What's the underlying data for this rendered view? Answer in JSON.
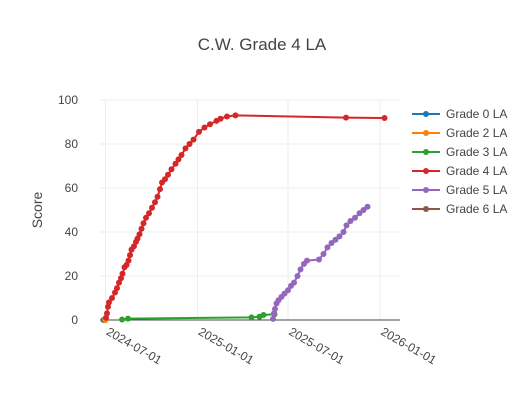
{
  "chart_data": {
    "type": "line",
    "title": "C.W. Grade 4 LA",
    "xlabel": "",
    "ylabel": "Score",
    "xlim": [
      "2024-06-20",
      "2026-02-10"
    ],
    "ylim": [
      0,
      100
    ],
    "x_ticks": [
      "2024-07-01",
      "2025-01-01",
      "2025-07-01",
      "2026-01-01"
    ],
    "y_ticks": [
      0,
      20,
      40,
      60,
      80,
      100
    ],
    "grid": true,
    "legend_position": "right",
    "series": [
      {
        "name": "Grade 0 LA",
        "color": "#1f77b4",
        "points": [
          [
            "2024-06-27",
            0
          ],
          [
            "2024-06-29",
            0
          ]
        ]
      },
      {
        "name": "Grade 2 LA",
        "color": "#ff7f0e",
        "points": [
          [
            "2024-06-30",
            0
          ],
          [
            "2024-07-01",
            0
          ]
        ]
      },
      {
        "name": "Grade 3 LA",
        "color": "#2ca02c",
        "points": [
          [
            "2024-08-03",
            0.2
          ],
          [
            "2024-08-15",
            0.6
          ],
          [
            "2025-04-19",
            1.2
          ],
          [
            "2025-05-05",
            1.5
          ],
          [
            "2025-05-13",
            2.3
          ],
          [
            "2025-06-04",
            2.6
          ]
        ]
      },
      {
        "name": "Grade 4 LA",
        "color": "#d62728",
        "points": [
          [
            "2024-07-02",
            1.0
          ],
          [
            "2024-07-04",
            3.0
          ],
          [
            "2024-07-06",
            6.0
          ],
          [
            "2024-07-08",
            8.0
          ],
          [
            "2024-07-14",
            10.0
          ],
          [
            "2024-07-20",
            12.5
          ],
          [
            "2024-07-24",
            14.5
          ],
          [
            "2024-07-28",
            17.0
          ],
          [
            "2024-08-01",
            19.0
          ],
          [
            "2024-08-04",
            21.0
          ],
          [
            "2024-08-08",
            24.0
          ],
          [
            "2024-08-12",
            25.0
          ],
          [
            "2024-08-16",
            27.0
          ],
          [
            "2024-08-19",
            29.5
          ],
          [
            "2024-08-22",
            32.0
          ],
          [
            "2024-08-27",
            33.5
          ],
          [
            "2024-08-31",
            35.5
          ],
          [
            "2024-09-03",
            37.0
          ],
          [
            "2024-09-07",
            39.0
          ],
          [
            "2024-09-11",
            41.5
          ],
          [
            "2024-09-15",
            44.0
          ],
          [
            "2024-09-20",
            46.5
          ],
          [
            "2024-09-26",
            48.5
          ],
          [
            "2024-10-02",
            51.0
          ],
          [
            "2024-10-08",
            53.5
          ],
          [
            "2024-10-13",
            56.0
          ],
          [
            "2024-10-18",
            59.5
          ],
          [
            "2024-10-22",
            62.5
          ],
          [
            "2024-10-28",
            64.0
          ],
          [
            "2024-11-03",
            66.0
          ],
          [
            "2024-11-10",
            68.5
          ],
          [
            "2024-11-18",
            71.0
          ],
          [
            "2024-11-24",
            73.0
          ],
          [
            "2024-11-30",
            75.0
          ],
          [
            "2024-12-08",
            78.0
          ],
          [
            "2024-12-16",
            80.0
          ],
          [
            "2024-12-24",
            82.0
          ],
          [
            "2025-01-04",
            85.5
          ],
          [
            "2025-01-15",
            87.5
          ],
          [
            "2025-01-26",
            89.0
          ],
          [
            "2025-02-08",
            90.5
          ],
          [
            "2025-02-16",
            91.5
          ],
          [
            "2025-03-01",
            92.5
          ],
          [
            "2025-03-18",
            93.0
          ],
          [
            "2025-10-25",
            92.0
          ],
          [
            "2026-01-10",
            91.8
          ]
        ]
      },
      {
        "name": "Grade 5 LA",
        "color": "#9467bd",
        "points": [
          [
            "2025-06-01",
            0.5
          ],
          [
            "2025-06-03",
            3.0
          ],
          [
            "2025-06-05",
            5.0
          ],
          [
            "2025-06-08",
            7.5
          ],
          [
            "2025-06-12",
            9.0
          ],
          [
            "2025-06-18",
            10.5
          ],
          [
            "2025-06-24",
            12.0
          ],
          [
            "2025-07-01",
            13.5
          ],
          [
            "2025-07-07",
            15.5
          ],
          [
            "2025-07-13",
            17.0
          ],
          [
            "2025-07-20",
            20.0
          ],
          [
            "2025-07-26",
            23.0
          ],
          [
            "2025-08-02",
            25.5
          ],
          [
            "2025-08-08",
            27.0
          ],
          [
            "2025-09-01",
            27.5
          ],
          [
            "2025-09-10",
            30.0
          ],
          [
            "2025-09-18",
            33.0
          ],
          [
            "2025-09-26",
            35.0
          ],
          [
            "2025-10-04",
            36.5
          ],
          [
            "2025-10-12",
            38.0
          ],
          [
            "2025-10-20",
            40.0
          ],
          [
            "2025-10-26",
            43.0
          ],
          [
            "2025-11-03",
            45.0
          ],
          [
            "2025-11-12",
            46.5
          ],
          [
            "2025-11-21",
            48.5
          ],
          [
            "2025-11-29",
            50.0
          ],
          [
            "2025-12-07",
            51.5
          ]
        ]
      },
      {
        "name": "Grade 6 LA",
        "color": "#8c564b",
        "points": []
      }
    ]
  }
}
